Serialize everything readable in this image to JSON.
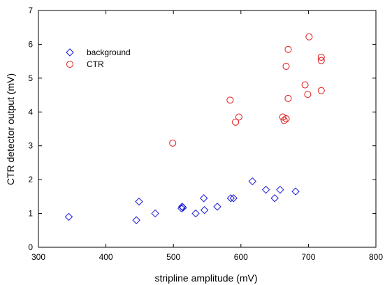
{
  "chart_data": {
    "type": "scatter",
    "title": "",
    "xlabel": "stripline amplitude (mV)",
    "ylabel": "CTR detector output (mV)",
    "xlim": [
      300,
      800
    ],
    "ylim": [
      0,
      7
    ],
    "x_ticks": [
      300,
      400,
      500,
      600,
      700,
      800
    ],
    "y_ticks": [
      0,
      1,
      2,
      3,
      4,
      5,
      6,
      7
    ],
    "grid": false,
    "legend_position": "top-left",
    "series": [
      {
        "name": "background",
        "marker": "diamond",
        "color": "#1a1adc",
        "points": [
          [
            345,
            0.9
          ],
          [
            445,
            0.8
          ],
          [
            449,
            1.35
          ],
          [
            473,
            1.0
          ],
          [
            512,
            1.15
          ],
          [
            513,
            1.2
          ],
          [
            514,
            1.17
          ],
          [
            533,
            1.0
          ],
          [
            545,
            1.45
          ],
          [
            546,
            1.1
          ],
          [
            565,
            1.2
          ],
          [
            585,
            1.45
          ],
          [
            589,
            1.45
          ],
          [
            617,
            1.95
          ],
          [
            637,
            1.7
          ],
          [
            650,
            1.45
          ],
          [
            658,
            1.7
          ],
          [
            681,
            1.65
          ]
        ]
      },
      {
        "name": "CTR",
        "marker": "circle",
        "color": "#e01818",
        "points": [
          [
            499,
            3.08
          ],
          [
            584,
            4.35
          ],
          [
            592,
            3.7
          ],
          [
            597,
            3.85
          ],
          [
            662,
            3.85
          ],
          [
            664,
            3.75
          ],
          [
            667,
            3.8
          ],
          [
            667,
            5.35
          ],
          [
            670,
            5.85
          ],
          [
            670,
            4.4
          ],
          [
            695,
            4.8
          ],
          [
            699,
            4.52
          ],
          [
            701,
            6.22
          ],
          [
            719,
            5.62
          ],
          [
            719,
            5.52
          ],
          [
            719,
            4.63
          ]
        ]
      }
    ]
  }
}
